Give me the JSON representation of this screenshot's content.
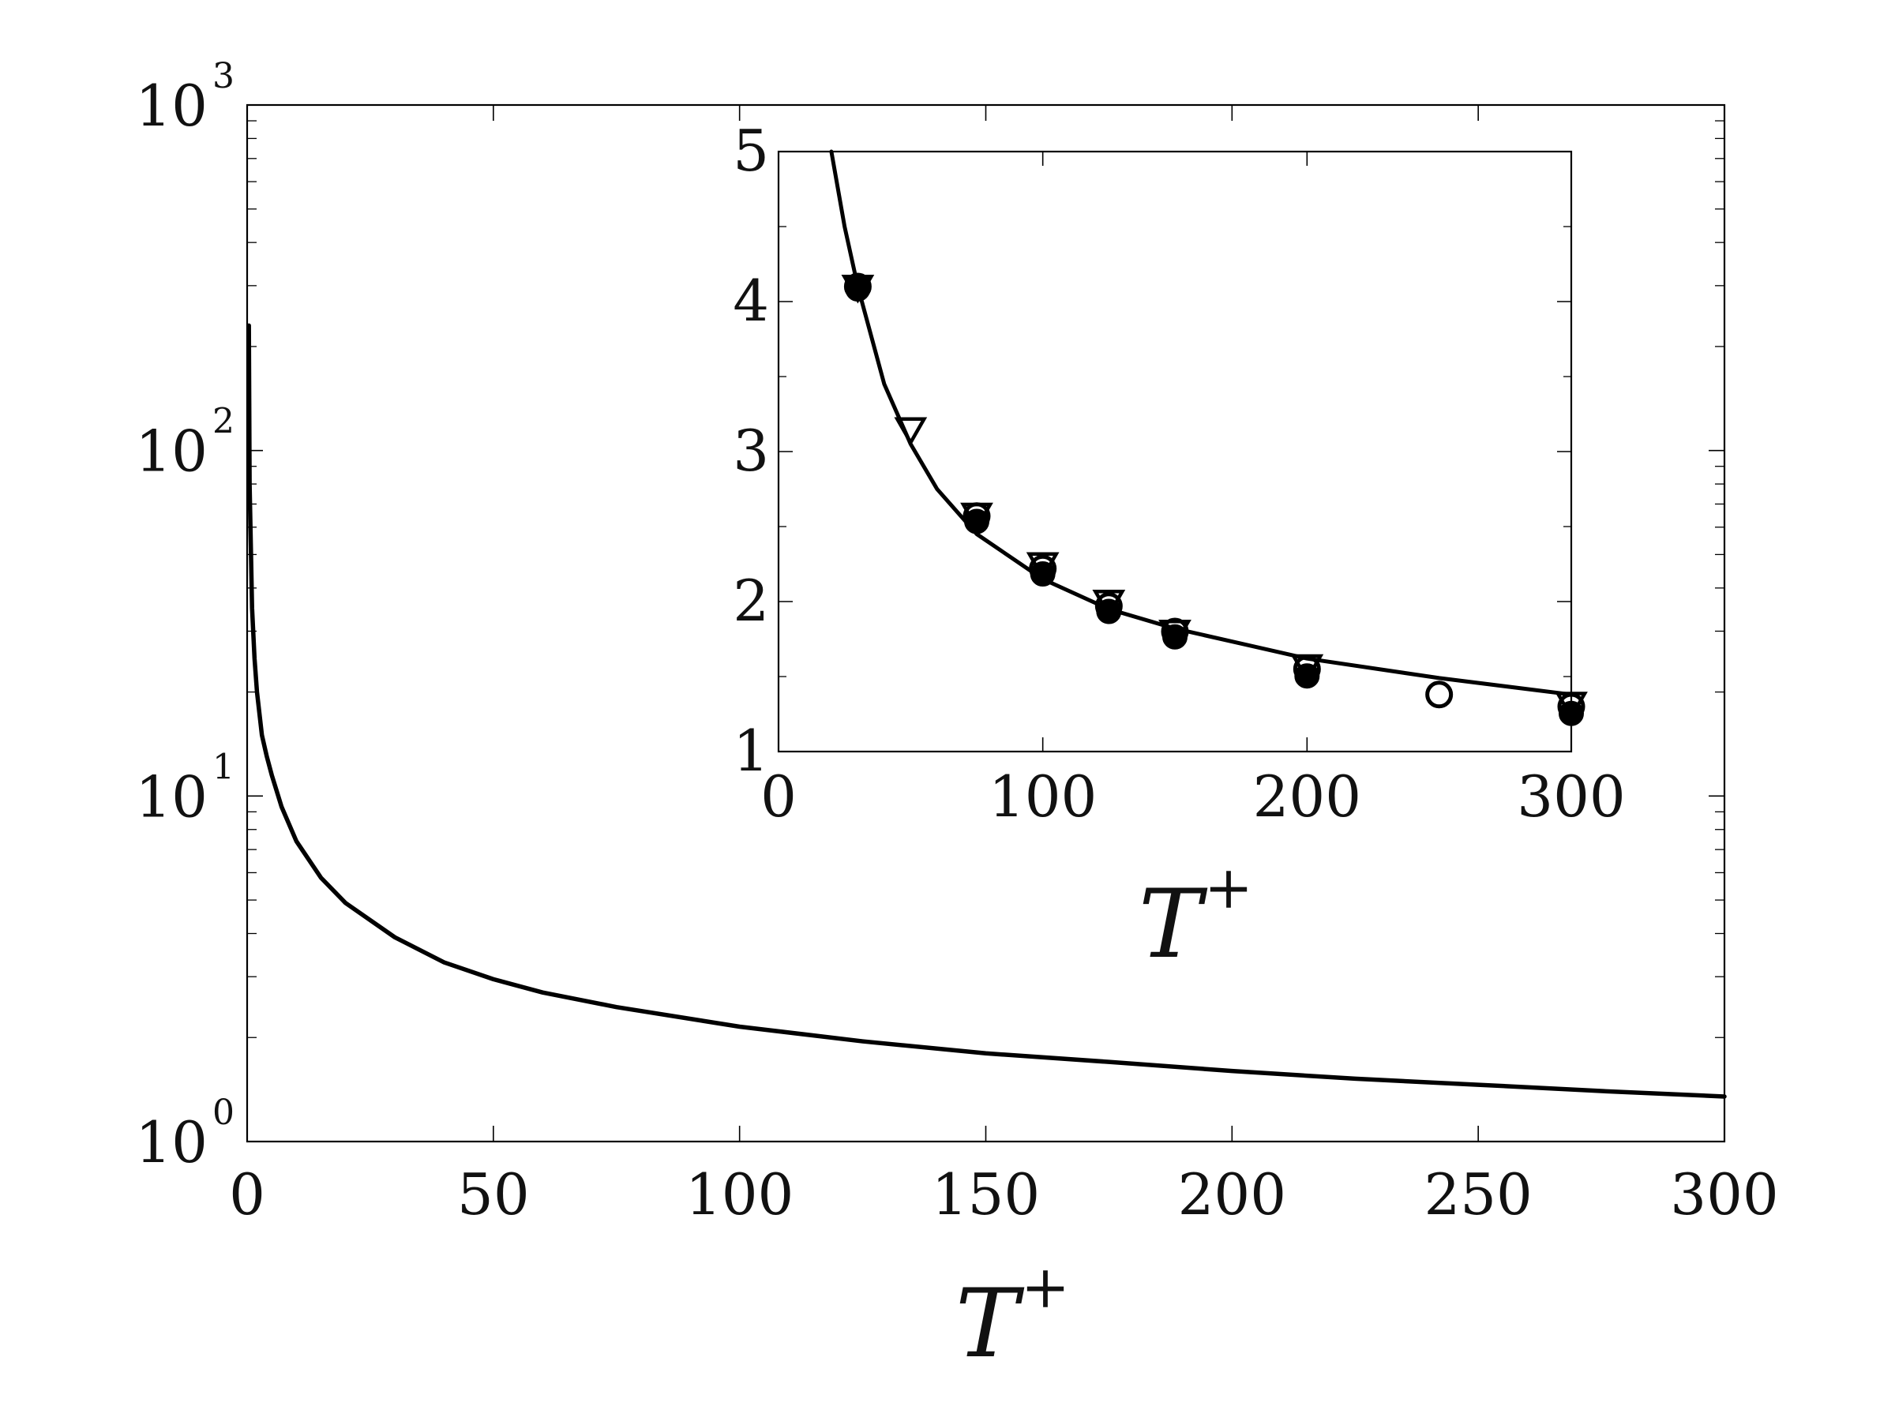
{
  "chart_data": [
    {
      "id": "main",
      "type": "line",
      "xlabel": "T",
      "xlabel_superscript": "+",
      "ylabel": "",
      "xlim": [
        0,
        300
      ],
      "ylim": [
        1,
        1000
      ],
      "yscale": "log",
      "grid": false,
      "x_ticks": [
        0,
        50,
        100,
        150,
        200,
        250,
        300
      ],
      "x_tick_labels": [
        "0",
        "50",
        "100",
        "150",
        "200",
        "250",
        "300"
      ],
      "y_ticks": [
        1,
        10,
        100,
        1000
      ],
      "y_tick_labels": [
        {
          "base": "10",
          "exp": "0"
        },
        {
          "base": "10",
          "exp": "1"
        },
        {
          "base": "10",
          "exp": "2"
        },
        {
          "base": "10",
          "exp": "3"
        }
      ],
      "series": [
        {
          "style": "solid-line",
          "color": "#000000",
          "x": [
            0.35,
            0.5,
            1,
            1.5,
            2,
            3,
            4,
            5,
            7,
            10,
            15,
            20,
            30,
            40,
            50,
            60,
            75,
            100,
            125,
            150,
            175,
            200,
            225,
            250,
            275,
            300
          ],
          "y": [
            230,
            80,
            35,
            25,
            20,
            15,
            13,
            11.5,
            9.3,
            7.4,
            5.8,
            4.9,
            3.9,
            3.3,
            2.95,
            2.7,
            2.45,
            2.15,
            1.95,
            1.8,
            1.7,
            1.6,
            1.52,
            1.46,
            1.4,
            1.35
          ]
        }
      ]
    },
    {
      "id": "inset",
      "type": "line",
      "xlabel": "T",
      "xlabel_superscript": "+",
      "ylabel": "",
      "xlim": [
        0,
        300
      ],
      "ylim": [
        1,
        5
      ],
      "yscale": "linear",
      "grid": false,
      "x_ticks": [
        0,
        100,
        200,
        300
      ],
      "x_tick_labels": [
        "0",
        "100",
        "200",
        "300"
      ],
      "y_ticks": [
        1,
        2,
        3,
        4,
        5
      ],
      "y_tick_labels": [
        "1",
        "2",
        "3",
        "4",
        "5"
      ],
      "series": [
        {
          "style": "solid-line",
          "color": "#000000",
          "x": [
            20,
            25,
            30,
            40,
            50,
            60,
            75,
            100,
            125,
            150,
            175,
            200,
            250,
            300
          ],
          "y": [
            5.0,
            4.5,
            4.1,
            3.45,
            3.05,
            2.75,
            2.45,
            2.15,
            1.95,
            1.82,
            1.72,
            1.62,
            1.49,
            1.38
          ]
        },
        {
          "style": "filled-circle",
          "color": "#000000",
          "x": [
            30,
            75,
            100,
            125,
            150,
            200,
            300
          ],
          "y": [
            4.1,
            2.55,
            2.2,
            1.95,
            1.78,
            1.52,
            1.27
          ]
        },
        {
          "style": "open-circle",
          "color": "#000000",
          "x": [
            30,
            75,
            100,
            125,
            150,
            200,
            250,
            300
          ],
          "y": [
            4.1,
            2.57,
            2.22,
            1.97,
            1.8,
            1.55,
            1.38,
            1.3
          ]
        },
        {
          "style": "open-triangle-down",
          "color": "#000000",
          "x": [
            30,
            50,
            75,
            100,
            125,
            150,
            200,
            300
          ],
          "y": [
            4.1,
            3.15,
            2.58,
            2.25,
            2.0,
            1.8,
            1.57,
            1.32
          ]
        }
      ]
    }
  ]
}
